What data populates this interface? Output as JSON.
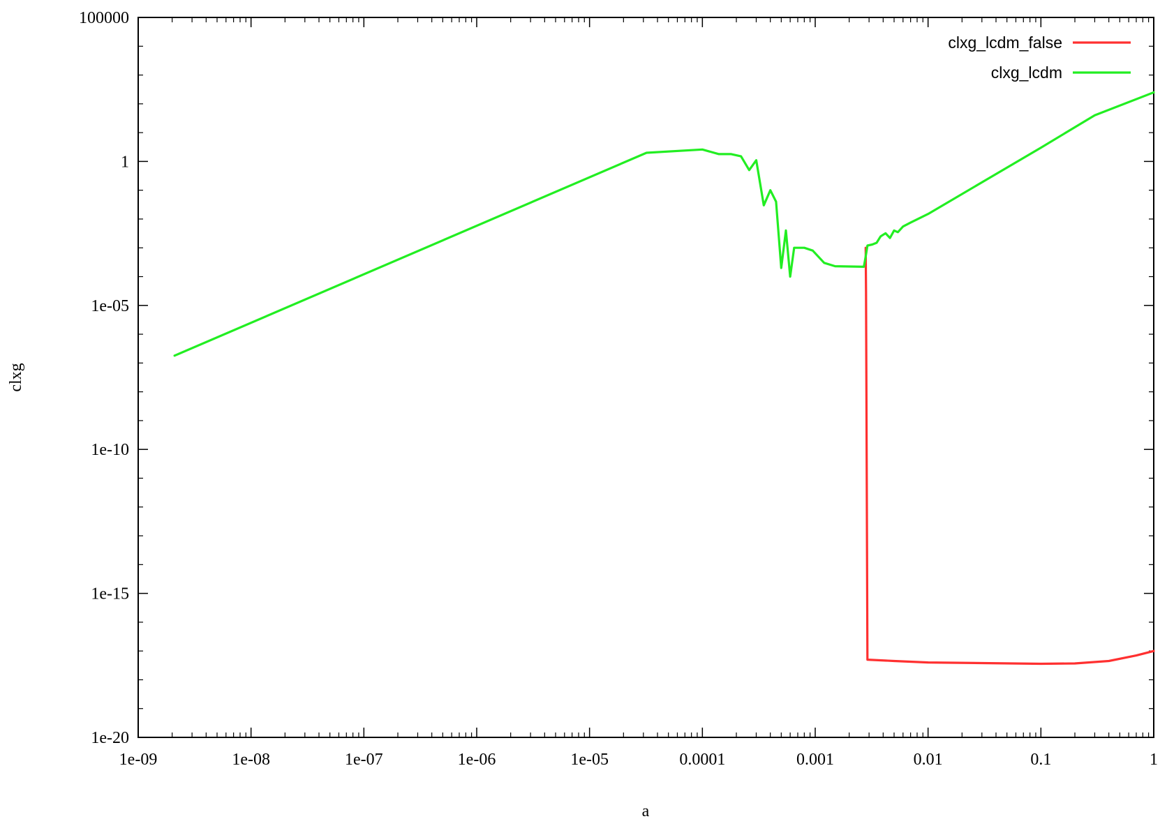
{
  "chart_data": {
    "type": "line",
    "xlabel": "a",
    "ylabel": "clxg",
    "x_scale": "log",
    "y_scale": "log",
    "xlim": [
      1e-09,
      1
    ],
    "ylim": [
      1e-20,
      100000
    ],
    "grid": false,
    "legend_position": "top-right",
    "x_ticks": [
      {
        "value": 1e-09,
        "label": "1e-09"
      },
      {
        "value": 1e-08,
        "label": "1e-08"
      },
      {
        "value": 1e-07,
        "label": "1e-07"
      },
      {
        "value": 1e-06,
        "label": "1e-06"
      },
      {
        "value": 1e-05,
        "label": "1e-05"
      },
      {
        "value": 0.0001,
        "label": "0.0001"
      },
      {
        "value": 0.001,
        "label": "0.001"
      },
      {
        "value": 0.01,
        "label": "0.01"
      },
      {
        "value": 0.1,
        "label": "0.1"
      },
      {
        "value": 1,
        "label": "1"
      }
    ],
    "y_ticks": [
      {
        "value": 1e-20,
        "label": "1e-20"
      },
      {
        "value": 1e-15,
        "label": "1e-15"
      },
      {
        "value": 1e-10,
        "label": "1e-10"
      },
      {
        "value": 1e-05,
        "label": "1e-05"
      },
      {
        "value": 1,
        "label": "1"
      },
      {
        "value": 100000,
        "label": "100000"
      }
    ],
    "series": [
      {
        "name": "clxg_lcdm_false",
        "color": "#ff3030",
        "points": [
          [
            0.0028,
            0.001
          ],
          [
            0.00282,
            3e-05
          ],
          [
            0.0029,
            5e-18
          ],
          [
            0.005,
            4.5e-18
          ],
          [
            0.01,
            4e-18
          ],
          [
            0.03,
            3.8e-18
          ],
          [
            0.1,
            3.6e-18
          ],
          [
            0.2,
            3.7e-18
          ],
          [
            0.4,
            4.5e-18
          ],
          [
            0.7,
            7e-18
          ],
          [
            1.0,
            1e-17
          ]
        ]
      },
      {
        "name": "clxg_lcdm",
        "color": "#22ee22",
        "points": [
          [
            2.1e-09,
            1.8e-07
          ],
          [
            3.2e-05,
            2.0
          ],
          [
            0.0001,
            2.6
          ],
          [
            0.00014,
            1.8
          ],
          [
            0.00018,
            1.8
          ],
          [
            0.00022,
            1.5
          ],
          [
            0.00026,
            0.5
          ],
          [
            0.0003,
            1.1
          ],
          [
            0.00035,
            0.03
          ],
          [
            0.0004,
            0.1
          ],
          [
            0.00045,
            0.04
          ],
          [
            0.0005,
            0.0002
          ],
          [
            0.00055,
            0.004
          ],
          [
            0.0006,
            0.0001
          ],
          [
            0.00065,
            0.001
          ],
          [
            0.0008,
            0.001
          ],
          [
            0.00095,
            0.0008
          ],
          [
            0.0012,
            0.0003
          ],
          [
            0.0015,
            0.00023
          ],
          [
            0.0027,
            0.00022
          ],
          [
            0.0028,
            0.0005
          ],
          [
            0.0029,
            0.0012
          ],
          [
            0.0032,
            0.0013
          ],
          [
            0.0035,
            0.0015
          ],
          [
            0.0038,
            0.0025
          ],
          [
            0.0042,
            0.0032
          ],
          [
            0.0046,
            0.0022
          ],
          [
            0.005,
            0.004
          ],
          [
            0.0054,
            0.0035
          ],
          [
            0.006,
            0.0055
          ],
          [
            0.007,
            0.0075
          ],
          [
            0.01,
            0.015
          ],
          [
            0.1,
            3.0
          ],
          [
            0.3,
            40
          ],
          [
            1.0,
            250
          ]
        ]
      }
    ]
  }
}
